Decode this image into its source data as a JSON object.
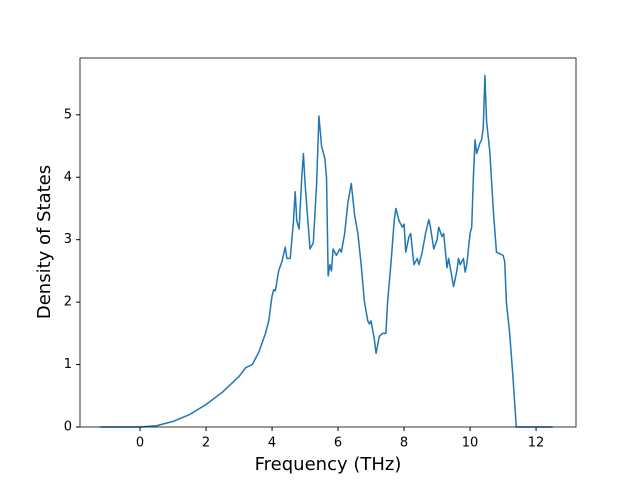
{
  "chart_data": {
    "type": "line",
    "xlabel": "Frequency (THz)",
    "ylabel": "Density of States",
    "xlim": [
      -1.82,
      13.21
    ],
    "ylim": [
      0,
      5.91
    ],
    "xticks": [
      0,
      2,
      4,
      6,
      8,
      10,
      12
    ],
    "yticks": [
      0,
      1,
      2,
      3,
      4,
      5
    ],
    "grid": false,
    "x": [
      -1.2,
      0,
      0.5,
      1,
      1.5,
      2,
      2.5,
      3,
      3.2,
      3.4,
      3.6,
      3.8,
      3.9,
      4.0,
      4.05,
      4.1,
      4.2,
      4.3,
      4.4,
      4.45,
      4.55,
      4.65,
      4.7,
      4.75,
      4.82,
      4.9,
      4.95,
      5.0,
      5.1,
      5.15,
      5.25,
      5.35,
      5.42,
      5.5,
      5.6,
      5.65,
      5.7,
      5.75,
      5.8,
      5.85,
      5.95,
      6.05,
      6.1,
      6.2,
      6.3,
      6.4,
      6.5,
      6.6,
      6.7,
      6.8,
      6.9,
      6.95,
      7.0,
      7.1,
      7.15,
      7.25,
      7.35,
      7.45,
      7.5,
      7.6,
      7.7,
      7.75,
      7.85,
      7.95,
      8.0,
      8.05,
      8.15,
      8.2,
      8.3,
      8.4,
      8.45,
      8.55,
      8.65,
      8.75,
      8.8,
      8.9,
      9.0,
      9.05,
      9.15,
      9.2,
      9.3,
      9.35,
      9.45,
      9.5,
      9.6,
      9.65,
      9.7,
      9.8,
      9.85,
      9.9,
      10.0,
      10.05,
      10.1,
      10.15,
      10.2,
      10.3,
      10.35,
      10.4,
      10.45,
      10.5,
      10.6,
      10.7,
      10.8,
      11.0,
      11.05,
      11.1,
      11.2,
      11.3,
      11.4,
      12.5
    ],
    "series": [
      {
        "color": "#1f77b4",
        "values": [
          0,
          0,
          0.02,
          0.09,
          0.2,
          0.36,
          0.56,
          0.81,
          0.95,
          1.0,
          1.2,
          1.5,
          1.7,
          2.1,
          2.2,
          2.18,
          2.5,
          2.65,
          2.88,
          2.7,
          2.7,
          3.3,
          3.77,
          3.3,
          3.17,
          4.0,
          4.38,
          3.9,
          3.2,
          2.85,
          2.95,
          3.9,
          4.98,
          4.5,
          4.3,
          4.0,
          2.42,
          2.6,
          2.5,
          2.85,
          2.75,
          2.85,
          2.8,
          3.1,
          3.6,
          3.9,
          3.4,
          3.1,
          2.6,
          2.0,
          1.7,
          1.65,
          1.7,
          1.4,
          1.18,
          1.45,
          1.5,
          1.5,
          2.0,
          2.6,
          3.3,
          3.5,
          3.3,
          3.2,
          3.25,
          2.8,
          3.05,
          3.1,
          2.6,
          2.7,
          2.6,
          2.8,
          3.1,
          3.32,
          3.2,
          2.85,
          3.0,
          3.2,
          3.05,
          3.1,
          2.55,
          2.7,
          2.4,
          2.25,
          2.5,
          2.7,
          2.6,
          2.7,
          2.48,
          2.6,
          3.1,
          3.2,
          4.0,
          4.6,
          4.38,
          4.55,
          4.6,
          4.8,
          5.63,
          4.9,
          4.4,
          3.5,
          2.8,
          2.75,
          2.65,
          2.0,
          1.5,
          0.8,
          0,
          0
        ]
      }
    ]
  }
}
